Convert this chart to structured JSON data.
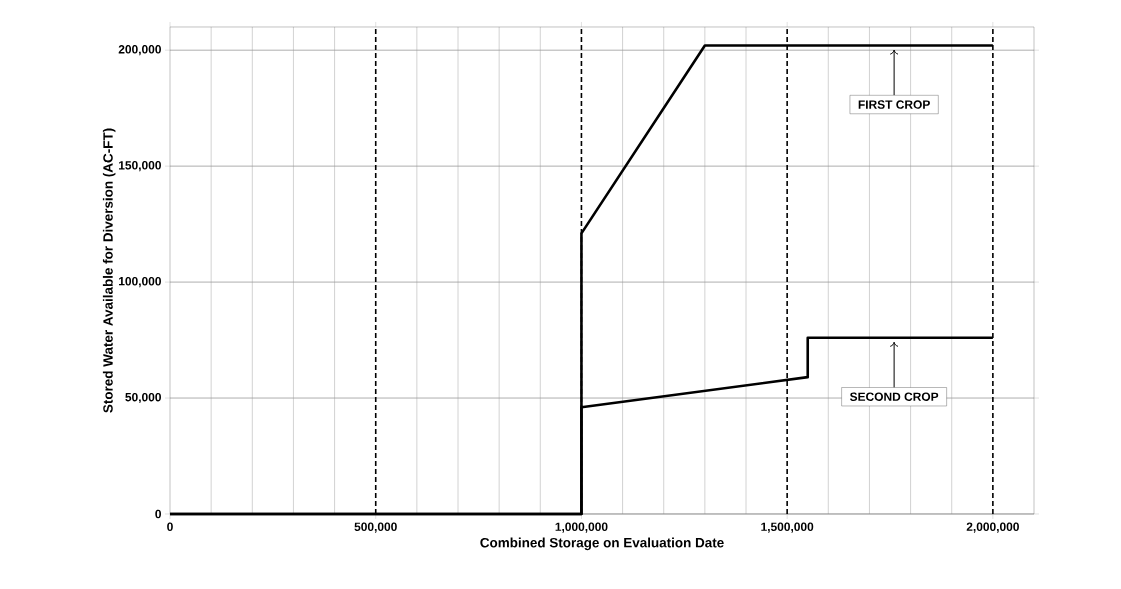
{
  "chart_data": {
    "type": "line",
    "xlabel": "Combined Storage on Evaluation Date",
    "ylabel": "Stored Water Available for Diversion  (AC-FT)",
    "xlim": [
      0,
      2100000
    ],
    "ylim": [
      0,
      210000
    ],
    "xticks": [
      {
        "value": 0,
        "label": "0"
      },
      {
        "value": 500000,
        "label": "500,000"
      },
      {
        "value": 1000000,
        "label": "1,000,000"
      },
      {
        "value": 1500000,
        "label": "1,500,000"
      },
      {
        "value": 2000000,
        "label": "2,000,000"
      }
    ],
    "yticks": [
      {
        "value": 0,
        "label": "0"
      },
      {
        "value": 50000,
        "label": "50,000"
      },
      {
        "value": 100000,
        "label": "100,000"
      },
      {
        "value": 150000,
        "label": "150,000"
      },
      {
        "value": 200000,
        "label": "200,000"
      }
    ],
    "grid": true,
    "marker": "none",
    "line_style": "solid",
    "series": [
      {
        "color": "#000000",
        "x": [
          0,
          1000000,
          1000000,
          1300000,
          2000000
        ],
        "values": [
          0,
          0,
          121000,
          202000,
          202000
        ]
      },
      {
        "color": "#000000",
        "x": [
          0,
          1000000,
          1000000,
          1550000,
          1550000,
          2000000
        ],
        "values": [
          0,
          0,
          46000,
          59000,
          76000,
          76000
        ]
      }
    ],
    "ref_lines": [
      {
        "axis": "x",
        "value": 500000,
        "color": "#000000",
        "line_style": "dashed"
      },
      {
        "axis": "x",
        "value": 1000000,
        "color": "#000000",
        "line_style": "dashed"
      },
      {
        "axis": "x",
        "value": 1500000,
        "color": "#000000",
        "line_style": "dashed"
      },
      {
        "axis": "x",
        "value": 2000000,
        "color": "#000000",
        "line_style": "dashed"
      }
    ],
    "annotations": [
      {
        "text": "FIRST CROP",
        "x": 1760000,
        "y": 202000
      },
      {
        "text": "SECOND CROP",
        "x": 1760000,
        "y": 76000
      }
    ]
  }
}
